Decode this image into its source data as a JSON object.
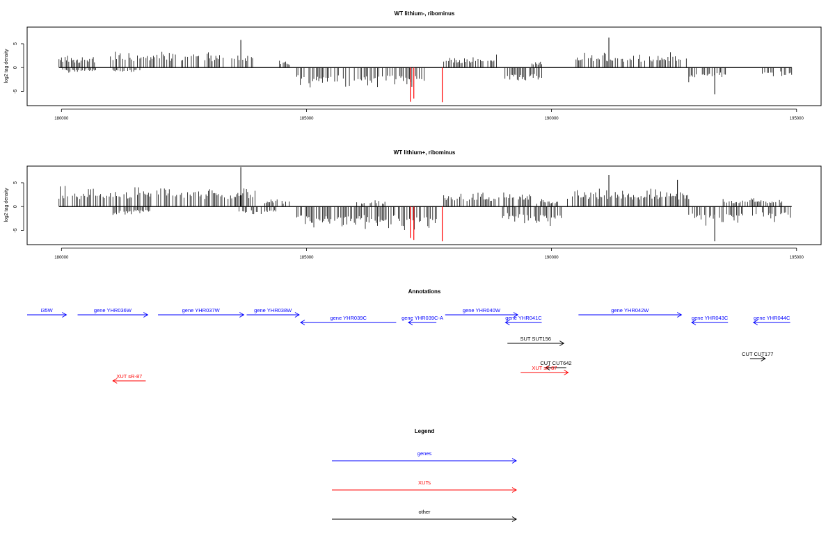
{
  "chart_data": [
    {
      "type": "bar",
      "title": "WT lithium-, ribominus",
      "ylabel": "log2 tag density",
      "xlim": [
        179300,
        195500
      ],
      "ylim": [
        -8,
        8.5
      ],
      "xticks": [
        180000,
        185000,
        190000,
        195000
      ],
      "yticks": [
        -5,
        0,
        5
      ],
      "bar_color": "#000000",
      "highlight_color": "#ff0000",
      "plus_strand_regions": [
        {
          "x0": 179950,
          "x1": 180700,
          "amp": 2.6
        },
        {
          "x0": 181000,
          "x1": 183900,
          "amp": 3.4
        },
        {
          "x0": 184450,
          "x1": 184650,
          "amp": 1.5
        },
        {
          "x0": 187800,
          "x1": 188900,
          "amp": 2.5
        },
        {
          "x0": 189600,
          "x1": 189800,
          "amp": 1.2
        },
        {
          "x0": 190500,
          "x1": 192750,
          "amp": 3.2
        }
      ],
      "minus_strand_regions": [
        {
          "x0": 180000,
          "x1": 180700,
          "amp": 1.0
        },
        {
          "x0": 181050,
          "x1": 181600,
          "amp": 1.0
        },
        {
          "x0": 184800,
          "x1": 187450,
          "amp": 4.2
        },
        {
          "x0": 189050,
          "x1": 189800,
          "amp": 3.2
        },
        {
          "x0": 192800,
          "x1": 193650,
          "amp": 2.8
        },
        {
          "x0": 194300,
          "x1": 194900,
          "amp": 2.0
        }
      ],
      "highlighted_bars": [
        {
          "x": 187120,
          "y": -7.2
        },
        {
          "x": 187190,
          "y": -6.5
        },
        {
          "x": 187770,
          "y": -7.3
        }
      ],
      "peaks": [
        {
          "x": 183660,
          "y": 5.8
        },
        {
          "x": 191170,
          "y": 6.3
        },
        {
          "x": 193330,
          "y": -5.6
        }
      ]
    },
    {
      "type": "bar",
      "title": "WT lithium+, ribominus",
      "ylabel": "log2 tag density",
      "xlim": [
        179300,
        195500
      ],
      "ylim": [
        -8,
        8.5
      ],
      "xticks": [
        180000,
        185000,
        190000,
        195000
      ],
      "yticks": [
        -5,
        0,
        5
      ],
      "bar_color": "#000000",
      "highlight_color": "#ff0000",
      "plus_strand_regions": [
        {
          "x0": 179950,
          "x1": 183950,
          "amp": 4.2
        },
        {
          "x0": 184100,
          "x1": 184650,
          "amp": 1.5
        },
        {
          "x0": 186000,
          "x1": 186600,
          "amp": 1.2
        },
        {
          "x0": 187800,
          "x1": 189600,
          "amp": 3.0
        },
        {
          "x0": 189700,
          "x1": 190200,
          "amp": 1.5
        },
        {
          "x0": 190300,
          "x1": 192800,
          "amp": 3.6
        },
        {
          "x0": 193500,
          "x1": 194700,
          "amp": 1.8
        }
      ],
      "minus_strand_regions": [
        {
          "x0": 181050,
          "x1": 181800,
          "amp": 2.0
        },
        {
          "x0": 183600,
          "x1": 184400,
          "amp": 1.8
        },
        {
          "x0": 184800,
          "x1": 187650,
          "amp": 4.8
        },
        {
          "x0": 189000,
          "x1": 190200,
          "amp": 3.8
        },
        {
          "x0": 192800,
          "x1": 193900,
          "amp": 3.8
        },
        {
          "x0": 194100,
          "x1": 194900,
          "amp": 3.2
        }
      ],
      "highlighted_bars": [
        {
          "x": 187120,
          "y": -6.6
        },
        {
          "x": 187190,
          "y": -7.0
        },
        {
          "x": 187770,
          "y": -7.3
        }
      ],
      "peaks": [
        {
          "x": 183660,
          "y": 8.3
        },
        {
          "x": 191170,
          "y": 6.6
        },
        {
          "x": 192570,
          "y": 5.6
        },
        {
          "x": 193330,
          "y": -7.3
        }
      ]
    },
    {
      "type": "annotation_track",
      "title": "Annotations",
      "xlim": [
        179300,
        195500
      ],
      "features": [
        {
          "label": "i35W",
          "kind": "gene",
          "strand": "+",
          "start": 179300,
          "end": 180100,
          "row": 0
        },
        {
          "label": "gene YHR036W",
          "kind": "gene",
          "strand": "+",
          "start": 180330,
          "end": 181760,
          "row": 0
        },
        {
          "label": "gene YHR037W",
          "kind": "gene",
          "strand": "+",
          "start": 181970,
          "end": 183720,
          "row": 0
        },
        {
          "label": "gene YHR038W",
          "kind": "gene",
          "strand": "+",
          "start": 183780,
          "end": 184850,
          "row": 0
        },
        {
          "label": "gene YHR039C",
          "kind": "gene",
          "strand": "-",
          "start": 184880,
          "end": 186830,
          "row": 1
        },
        {
          "label": "gene YHR039C-A",
          "kind": "gene",
          "strand": "-",
          "start": 187080,
          "end": 187650,
          "row": 1
        },
        {
          "label": "gene YHR040W",
          "kind": "gene",
          "strand": "+",
          "start": 187830,
          "end": 189310,
          "row": 0
        },
        {
          "label": "gene YHR041C",
          "kind": "gene",
          "strand": "-",
          "start": 189060,
          "end": 189800,
          "row": 1
        },
        {
          "label": "gene YHR042W",
          "kind": "gene",
          "strand": "+",
          "start": 190550,
          "end": 192650,
          "row": 0
        },
        {
          "label": "gene YHR043C",
          "kind": "gene",
          "strand": "-",
          "start": 192860,
          "end": 193600,
          "row": 1
        },
        {
          "label": "gene YHR044C",
          "kind": "gene",
          "strand": "-",
          "start": 194120,
          "end": 194870,
          "row": 1
        },
        {
          "label": "SUT SUT156",
          "kind": "other",
          "strand": "+",
          "start": 189100,
          "end": 190250,
          "row": 2
        },
        {
          "label": "CUT CUT642",
          "kind": "other",
          "strand": "-",
          "start": 189880,
          "end": 190300,
          "row": 3
        },
        {
          "label": "XUT sF-87",
          "kind": "XUT",
          "strand": "+",
          "start": 189370,
          "end": 190340,
          "row": 4
        },
        {
          "label": "CUT CUT177",
          "kind": "other",
          "strand": "+",
          "start": 194050,
          "end": 194360,
          "row": 5
        },
        {
          "label": "XUT sR-87",
          "kind": "XUT",
          "strand": "-",
          "start": 181050,
          "end": 181720,
          "row": 6
        }
      ]
    }
  ],
  "legend": {
    "title": "Legend",
    "items": [
      {
        "label": "genes",
        "color": "#0000ff"
      },
      {
        "label": "XUTs",
        "color": "#ff0000"
      },
      {
        "label": "other",
        "color": "#000000"
      }
    ]
  },
  "colors": {
    "gene": "#0000ff",
    "XUT": "#ff0000",
    "other": "#000000"
  }
}
